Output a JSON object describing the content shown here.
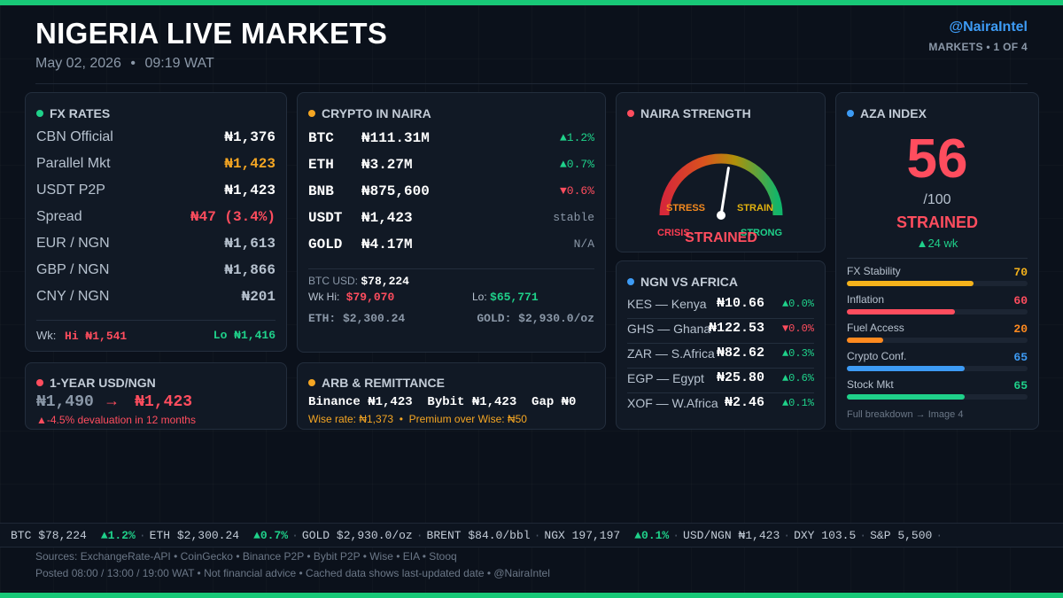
{
  "header": {
    "title": "NIGERIA LIVE MARKETS",
    "date": "May 02, 2026",
    "time": "09:19 WAT",
    "handle": "@NairaIntel",
    "page_indicator": "MARKETS  •  1 OF 4"
  },
  "colors": {
    "accent_green": "#18c877",
    "up": "#1fd18a",
    "down": "#ff4d5e",
    "amber": "#f5a623",
    "blue": "#3d9bf5",
    "orange": "#ff8a1f"
  },
  "fx": {
    "title": "FX RATES",
    "rows": [
      {
        "label": "CBN Official",
        "value": "₦1,376"
      },
      {
        "label": "Parallel Mkt",
        "value": "₦1,423"
      },
      {
        "label": "USDT P2P",
        "value": "₦1,423"
      },
      {
        "label": "Spread",
        "value": "₦47 (3.4%)"
      },
      {
        "label": "EUR / NGN",
        "value": "₦1,613"
      },
      {
        "label": "GBP / NGN",
        "value": "₦1,866"
      },
      {
        "label": "CNY / NGN",
        "value": "₦201"
      }
    ],
    "wk_label": "Wk:",
    "wk_hi": "Hi ₦1,541",
    "wk_lo": "Lo ₦1,416"
  },
  "usd_year": {
    "title": "1-YEAR USD/NGN",
    "from": "₦1,490",
    "arrow": "→",
    "to": "₦1,423",
    "note": "▲-4.5% devaluation in 12 months"
  },
  "crypto": {
    "title": "CRYPTO IN NAIRA",
    "rows": [
      {
        "symbol": "BTC",
        "value": "₦111.31M",
        "change": "▲1.2%",
        "dir": "up"
      },
      {
        "symbol": "ETH",
        "value": "₦3.27M",
        "change": "▲0.7%",
        "dir": "up"
      },
      {
        "symbol": "BNB",
        "value": "₦875,600",
        "change": "▼0.6%",
        "dir": "down"
      },
      {
        "symbol": "USDT",
        "value": "₦1,423",
        "change": "stable",
        "dir": "flat"
      },
      {
        "symbol": "GOLD",
        "value": "₦4.17M",
        "change": "N/A",
        "dir": "flat"
      }
    ],
    "btc_usd_label": "BTC USD:",
    "btc_usd": "$78,224",
    "wk_hi_label": "Wk Hi:",
    "wk_hi": "$79,070",
    "lo_label": "Lo:",
    "lo": "$65,771",
    "eth_line": "ETH: $2,300.24",
    "gold_line": "GOLD: $2,930.0/oz"
  },
  "arb": {
    "title": "ARB & REMITTANCE",
    "line": "Binance ₦1,423  Bybit ₦1,423  Gap ₦0",
    "wise_line": "Wise rate: ₦1,373  •  Premium over Wise: ₦50"
  },
  "strength": {
    "title": "NAIRA STRENGTH",
    "labels": {
      "stress": "STRESS",
      "strain": "STRAIN",
      "crisis": "CRISIS",
      "strong": "STRONG"
    },
    "status": "STRAINED",
    "needle_fraction": 0.55
  },
  "africa": {
    "title": "NGN VS AFRICA",
    "rows": [
      {
        "label": "KES — Kenya",
        "value": "₦10.66",
        "change": "▲0.0%",
        "dir": "up"
      },
      {
        "label": "GHS — Ghana",
        "value": "₦122.53",
        "change": "▼0.0%",
        "dir": "down"
      },
      {
        "label": "ZAR — S.Africa",
        "value": "₦82.62",
        "change": "▲0.3%",
        "dir": "up"
      },
      {
        "label": "EGP — Egypt",
        "value": "₦25.80",
        "change": "▲0.6%",
        "dir": "up"
      },
      {
        "label": "XOF — W.Africa",
        "value": "₦2.46",
        "change": "▲0.1%",
        "dir": "up"
      }
    ]
  },
  "aza": {
    "title": "AZA INDEX",
    "score": "56",
    "out_of": "/100",
    "status": "STRAINED",
    "trend": "▲24 wk",
    "components": [
      {
        "label": "FX Stability",
        "value": 70,
        "color": "#f5b21b"
      },
      {
        "label": "Inflation",
        "value": 60,
        "color": "#ff4d5e"
      },
      {
        "label": "Fuel Access",
        "value": 20,
        "color": "#ff8a1f"
      },
      {
        "label": "Crypto Conf.",
        "value": 65,
        "color": "#3d9bf5"
      },
      {
        "label": "Stock Mkt",
        "value": 65,
        "color": "#1fd18a"
      }
    ],
    "footer": "Full breakdown → Image 4"
  },
  "ticker": [
    {
      "text": "BTC $78,224",
      "change": "▲1.2%",
      "dir": "up"
    },
    {
      "text": "ETH $2,300.24",
      "change": "▲0.7%",
      "dir": "up"
    },
    {
      "text": "GOLD $2,930.0/oz",
      "change": "",
      "dir": "flat"
    },
    {
      "text": "BRENT $84.0/bbl",
      "change": "",
      "dir": "flat"
    },
    {
      "text": "NGX 197,197",
      "change": "▲0.1%",
      "dir": "up"
    },
    {
      "text": "USD/NGN ₦1,423",
      "change": "",
      "dir": "flat"
    },
    {
      "text": "DXY 103.5",
      "change": "",
      "dir": "flat"
    },
    {
      "text": "S&P 5,500",
      "change": "",
      "dir": "flat"
    }
  ],
  "footer": {
    "sources": "Sources: ExchangeRate-API  •  CoinGecko  •  Binance P2P  •  Bybit P2P  •  Wise  •  EIA  •  Stooq",
    "posted": "Posted 08:00 / 13:00 / 19:00 WAT  •  Not financial advice  •  Cached data shows last-updated date  •  @NairaIntel"
  }
}
